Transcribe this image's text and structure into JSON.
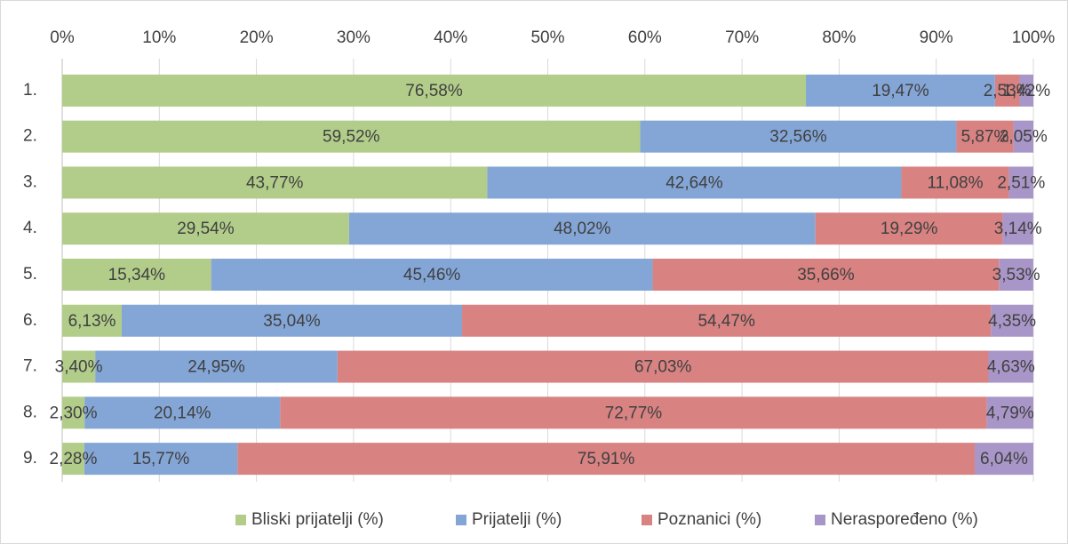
{
  "chart_data": {
    "type": "stacked_barh",
    "categories": [
      "1.",
      "2.",
      "3.",
      "4.",
      "5.",
      "6.",
      "7.",
      "8.",
      "9."
    ],
    "series": [
      {
        "name": "Bliski prijatelji (%)",
        "color": "#b2cd8a",
        "values": [
          76.58,
          59.52,
          43.77,
          29.54,
          15.34,
          6.13,
          3.4,
          2.3,
          2.28
        ],
        "value_labels": [
          "76,58%",
          "59,52%",
          "43,77%",
          "29,54%",
          "15,34%",
          "6,13%",
          "3,40%",
          "2,30%",
          "2,28%"
        ]
      },
      {
        "name": "Prijatelji (%)",
        "color": "#84a6d6",
        "values": [
          19.47,
          32.56,
          42.64,
          48.02,
          45.46,
          35.04,
          24.95,
          20.14,
          15.77
        ],
        "value_labels": [
          "19,47%",
          "32,56%",
          "42,64%",
          "48,02%",
          "45,46%",
          "35,04%",
          "24,95%",
          "20,14%",
          "15,77%"
        ]
      },
      {
        "name": "Poznanici (%)",
        "color": "#d88282",
        "values": [
          2.53,
          5.87,
          11.08,
          19.29,
          35.66,
          54.47,
          67.03,
          72.77,
          75.91
        ],
        "value_labels": [
          "2,53%",
          "5,87%",
          "11,08%",
          "19,29%",
          "35,66%",
          "54,47%",
          "67,03%",
          "72,77%",
          "75,91%"
        ]
      },
      {
        "name": "Neraspoređeno (%)",
        "color": "#a996c8",
        "values": [
          1.42,
          2.05,
          2.51,
          3.14,
          3.53,
          4.35,
          4.63,
          4.79,
          6.04
        ],
        "value_labels": [
          "1,42%",
          "2,05%",
          "2,51%",
          "3,14%",
          "3,53%",
          "4,35%",
          "4,63%",
          "4,79%",
          "6,04%"
        ]
      }
    ],
    "xlim": [
      0,
      100
    ],
    "xticks": [
      {
        "value": 0,
        "label": "0%"
      },
      {
        "value": 10,
        "label": "10%"
      },
      {
        "value": 20,
        "label": "20%"
      },
      {
        "value": 30,
        "label": "30%"
      },
      {
        "value": 40,
        "label": "40%"
      },
      {
        "value": 50,
        "label": "50%"
      },
      {
        "value": 60,
        "label": "60%"
      },
      {
        "value": 70,
        "label": "70%"
      },
      {
        "value": 80,
        "label": "80%"
      },
      {
        "value": 90,
        "label": "90%"
      },
      {
        "value": 100,
        "label": "100%"
      }
    ],
    "grid": true,
    "legend": "bottom"
  }
}
